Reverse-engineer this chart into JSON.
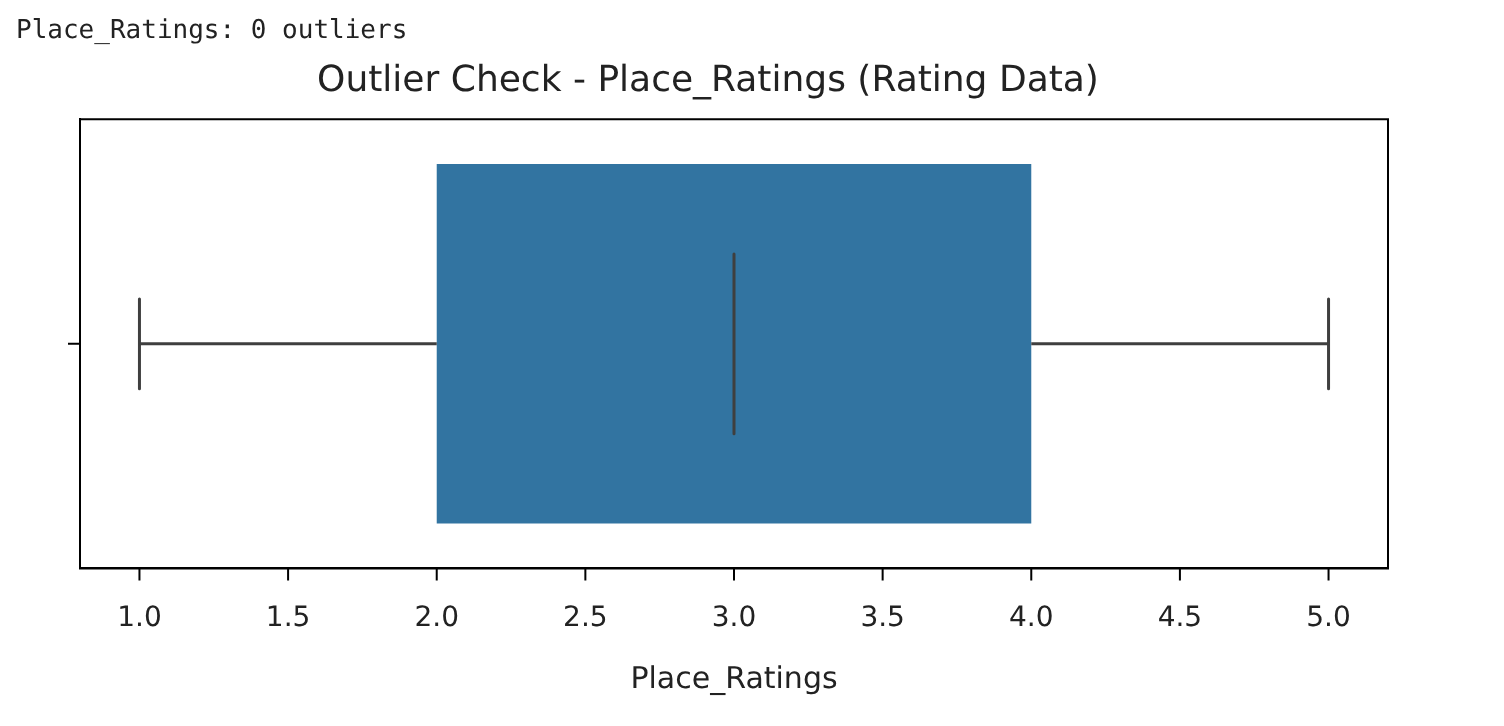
{
  "chart_data": {
    "type": "box",
    "title": "Outlier Check - Place_Ratings (Rating Data)",
    "xlabel": "Place_Ratings",
    "annotations": [
      "Place_Ratings: 0 outliers"
    ],
    "orientation": "horizontal",
    "categories": [
      null
    ],
    "boxes": [
      {
        "low": 1,
        "q1": 2,
        "median": 3,
        "q3": 4,
        "high": 5
      }
    ],
    "color": "#3274a1",
    "xlim": [
      0.8,
      5.2
    ],
    "xticks": [
      {
        "value": 1,
        "label": "1.0"
      },
      {
        "value": 1.5,
        "label": "1.5"
      },
      {
        "value": 2,
        "label": "2.0"
      },
      {
        "value": 2.5,
        "label": "2.5"
      },
      {
        "value": 3,
        "label": "3.0"
      },
      {
        "value": 3.5,
        "label": "3.5"
      },
      {
        "value": 4,
        "label": "4.0"
      },
      {
        "value": 4.5,
        "label": "4.5"
      },
      {
        "value": 5,
        "label": "5.0"
      }
    ],
    "grid": false,
    "legend": false
  }
}
